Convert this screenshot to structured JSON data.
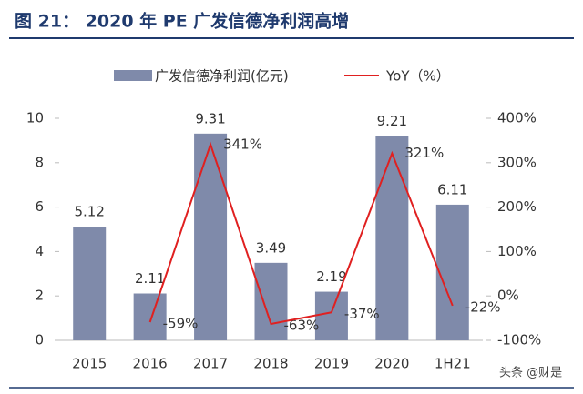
{
  "chart_data": {
    "type": "bar",
    "title": "图 21：  2020 年 PE 广发信德净利润高增",
    "categories": [
      "2015",
      "2016",
      "2017",
      "2018",
      "2019",
      "2020",
      "1H21"
    ],
    "series": [
      {
        "name": "广发信德净利润(亿元)",
        "color": "#7f8aaa",
        "values": [
          5.12,
          2.11,
          9.31,
          3.49,
          2.19,
          9.21,
          6.11
        ]
      },
      {
        "name": "YoY（%）",
        "color": "#e02020",
        "axis": "y2",
        "type": "line",
        "values": [
          null,
          -59,
          341,
          -63,
          -37,
          321,
          -22
        ],
        "value_labels": [
          null,
          "-59%",
          "341%",
          "-63%",
          "-37%",
          "321%",
          "-22%"
        ]
      }
    ],
    "ylim": [
      0,
      10
    ],
    "yticks": [
      0,
      2,
      4,
      6,
      8,
      10
    ],
    "y2lim": [
      -100,
      400
    ],
    "y2ticks": [
      {
        "value": -100,
        "label": "-100%"
      },
      {
        "value": 0,
        "label": "0%"
      },
      {
        "value": 100,
        "label": "100%"
      },
      {
        "value": 200,
        "label": "200%"
      },
      {
        "value": 300,
        "label": "300%"
      },
      {
        "value": 400,
        "label": "400%"
      }
    ],
    "legend": "top",
    "watermark": "头条 @财是"
  }
}
